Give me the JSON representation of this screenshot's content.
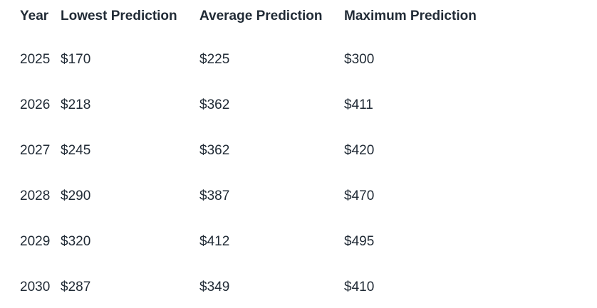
{
  "colors": {
    "background": "#ffffff",
    "text": "#212b36"
  },
  "table": {
    "columns": [
      "Year",
      "Lowest Prediction",
      "Average Prediction",
      "Maximum Prediction"
    ],
    "rows": [
      {
        "year": "2025",
        "lowest": "$170",
        "average": "$225",
        "maximum": "$300"
      },
      {
        "year": "2026",
        "lowest": "$218",
        "average": "$362",
        "maximum": "$411"
      },
      {
        "year": "2027",
        "lowest": "$245",
        "average": "$362",
        "maximum": "$420"
      },
      {
        "year": "2028",
        "lowest": "$290",
        "average": "$387",
        "maximum": "$470"
      },
      {
        "year": "2029",
        "lowest": "$320",
        "average": "$412",
        "maximum": "$495"
      },
      {
        "year": "2030",
        "lowest": "$287",
        "average": "$349",
        "maximum": "$410"
      }
    ]
  },
  "chart_data": {
    "type": "table",
    "title": "",
    "categories": [
      "2025",
      "2026",
      "2027",
      "2028",
      "2029",
      "2030"
    ],
    "series": [
      {
        "name": "Lowest Prediction",
        "values": [
          170,
          218,
          245,
          290,
          320,
          287
        ]
      },
      {
        "name": "Average Prediction",
        "values": [
          225,
          362,
          362,
          387,
          412,
          349
        ]
      },
      {
        "name": "Maximum Prediction",
        "values": [
          300,
          411,
          420,
          470,
          495,
          410
        ]
      }
    ],
    "value_unit": "$"
  }
}
